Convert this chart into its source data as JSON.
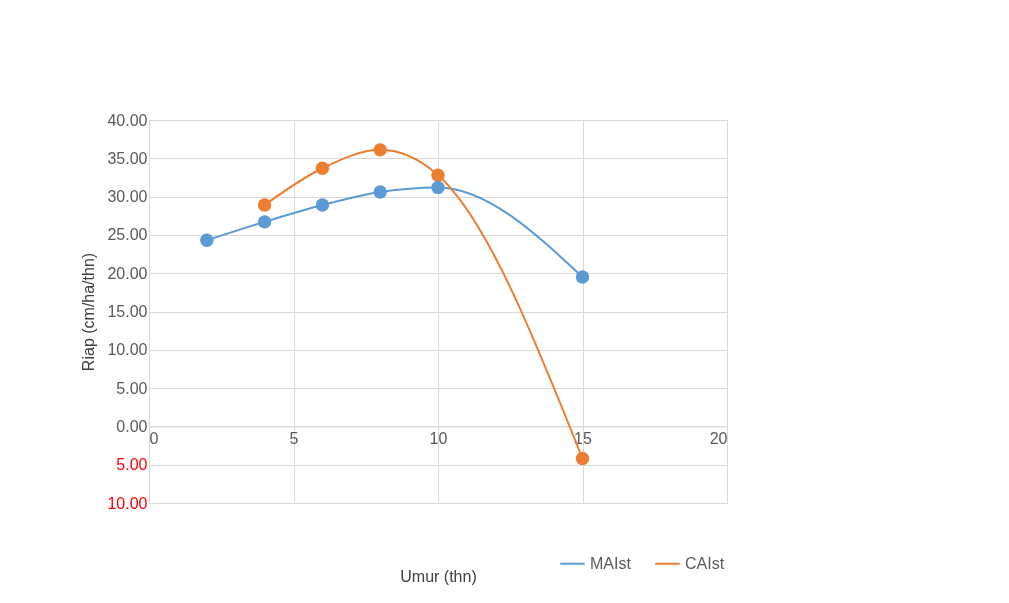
{
  "chart_data": {
    "type": "line",
    "xlabel": "Umur (thn)",
    "ylabel": "Riap (cm/ha/thn)",
    "xlim": [
      0,
      20
    ],
    "xticks": [
      0,
      5,
      10,
      15,
      20
    ],
    "ylim": [
      -10,
      40
    ],
    "yticks": [
      {
        "value": -10,
        "label": "10.00"
      },
      {
        "value": -5,
        "label": "5.00"
      },
      {
        "value": 0,
        "label": "0.00"
      },
      {
        "value": 5,
        "label": "5.00"
      },
      {
        "value": 10,
        "label": "10.00"
      },
      {
        "value": 15,
        "label": "15.00"
      },
      {
        "value": 20,
        "label": "20.00"
      },
      {
        "value": 25,
        "label": "25.00"
      },
      {
        "value": 30,
        "label": "30.00"
      },
      {
        "value": 35,
        "label": "35.00"
      },
      {
        "value": 40,
        "label": "40.00"
      }
    ],
    "series": [
      {
        "name": "MAIst",
        "color": "#5b9bd5",
        "x": [
          2,
          4,
          6,
          8,
          10,
          15
        ],
        "values": [
          24.3,
          26.7,
          28.9,
          30.6,
          31.2,
          19.5
        ]
      },
      {
        "name": "CAIst",
        "color": "#ed7d31",
        "x": [
          4,
          6,
          8,
          10,
          15
        ],
        "values": [
          28.9,
          33.7,
          36.1,
          32.8,
          -4.2
        ]
      }
    ],
    "grid": true,
    "legend": "bottom right",
    "marker": "circle",
    "line_style": "solid"
  }
}
